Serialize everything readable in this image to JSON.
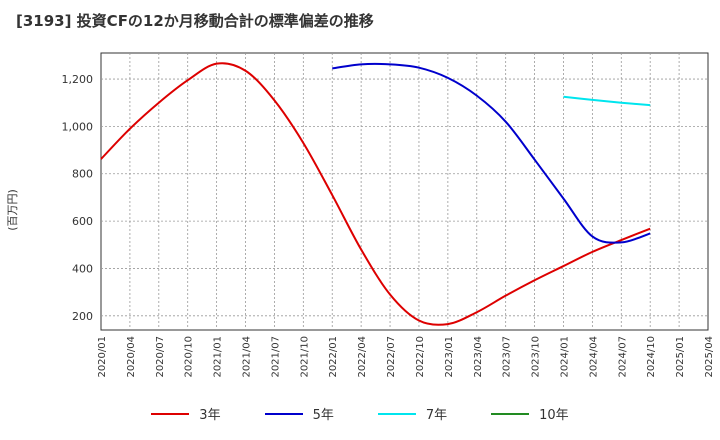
{
  "title": "[3193]  投資CFの12か月移動合計の標準偏差の推移",
  "chart_data": {
    "type": "line",
    "title": "[3193]  投資CFの12か月移動合計の標準偏差の推移",
    "xlabel": "",
    "ylabel": "(百万円)",
    "ylim": [
      140,
      1310
    ],
    "yticks": [
      200,
      400,
      600,
      800,
      1000,
      1200
    ],
    "ytick_labels": [
      "200",
      "400",
      "600",
      "800",
      "1,000",
      "1,200"
    ],
    "xticks": [
      "2020/01",
      "2020/04",
      "2020/07",
      "2020/10",
      "2021/01",
      "2021/04",
      "2021/07",
      "2021/10",
      "2022/01",
      "2022/04",
      "2022/07",
      "2022/10",
      "2023/01",
      "2023/04",
      "2023/07",
      "2023/10",
      "2024/01",
      "2024/04",
      "2024/07",
      "2024/10",
      "2025/01",
      "2025/04"
    ],
    "grid": true,
    "legend_position": "bottom",
    "series": [
      {
        "name": "3年",
        "color": "#dd0000",
        "points": [
          [
            "2020/01",
            862
          ],
          [
            "2020/04",
            990
          ],
          [
            "2020/07",
            1100
          ],
          [
            "2020/10",
            1195
          ],
          [
            "2021/01",
            1265
          ],
          [
            "2021/04",
            1235
          ],
          [
            "2021/07",
            1110
          ],
          [
            "2021/10",
            930
          ],
          [
            "2022/01",
            710
          ],
          [
            "2022/04",
            480
          ],
          [
            "2022/07",
            290
          ],
          [
            "2022/10",
            180
          ],
          [
            "2023/01",
            165
          ],
          [
            "2023/04",
            215
          ],
          [
            "2023/07",
            285
          ],
          [
            "2023/10",
            350
          ],
          [
            "2024/01",
            410
          ],
          [
            "2024/04",
            470
          ],
          [
            "2024/07",
            520
          ],
          [
            "2024/10",
            568
          ]
        ]
      },
      {
        "name": "5年",
        "color": "#0000cc",
        "points": [
          [
            "2022/01",
            1245
          ],
          [
            "2022/04",
            1262
          ],
          [
            "2022/07",
            1262
          ],
          [
            "2022/10",
            1248
          ],
          [
            "2023/01",
            1205
          ],
          [
            "2023/04",
            1130
          ],
          [
            "2023/07",
            1020
          ],
          [
            "2023/10",
            860
          ],
          [
            "2024/01",
            695
          ],
          [
            "2024/04",
            535
          ],
          [
            "2024/07",
            510
          ],
          [
            "2024/10",
            548
          ]
        ]
      },
      {
        "name": "7年",
        "color": "#00e5ee",
        "points": [
          [
            "2024/01",
            1125
          ],
          [
            "2024/04",
            1112
          ],
          [
            "2024/07",
            1100
          ],
          [
            "2024/10",
            1090
          ]
        ]
      },
      {
        "name": "10年",
        "color": "#228b22",
        "points": []
      }
    ]
  }
}
